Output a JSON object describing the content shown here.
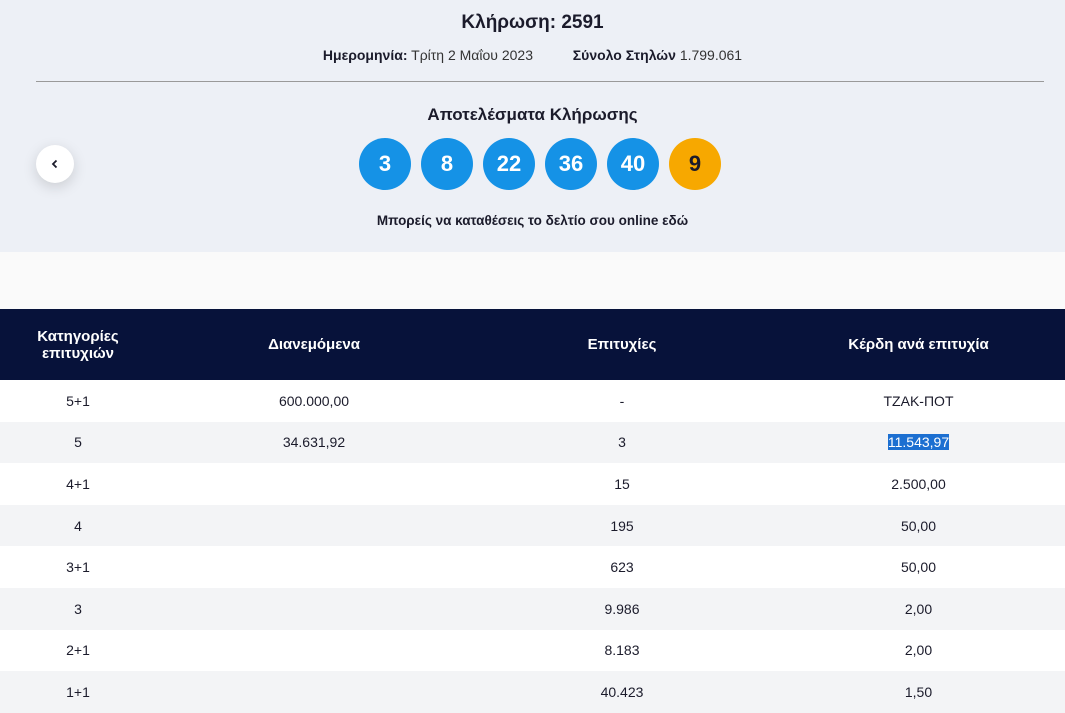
{
  "header": {
    "title": "Κλήρωση: 2591",
    "date_label": "Ημερομηνία:",
    "date_value": "Τρίτη 2 Μαΐου 2023",
    "columns_label": "Σύνολο Στηλών",
    "columns_value": "1.799.061"
  },
  "results": {
    "title": "Αποτελέσματα Κλήρωσης",
    "numbers": [
      3,
      8,
      22,
      36,
      40
    ],
    "bonus": 9,
    "online_text": "Μπορείς να καταθέσεις το δελτίο σου online εδώ"
  },
  "table": {
    "headers": [
      "Κατηγορίες επιτυχιών",
      "Διανεμόμενα",
      "Επιτυχίες",
      "Κέρδη ανά επιτυχία"
    ],
    "rows": [
      [
        "5+1",
        "600.000,00",
        "-",
        "ΤΖΑΚ-ΠΟΤ"
      ],
      [
        "5",
        "34.631,92",
        "3",
        "11.543,97"
      ],
      [
        "4+1",
        null,
        "15",
        "2.500,00"
      ],
      [
        "4",
        null,
        "195",
        "50,00"
      ],
      [
        "3+1",
        null,
        "623",
        "50,00"
      ],
      [
        "3",
        null,
        "9.986",
        "2,00"
      ],
      [
        "2+1",
        null,
        "8.183",
        "2,00"
      ],
      [
        "1+1",
        null,
        "40.423",
        "1,50"
      ]
    ]
  }
}
